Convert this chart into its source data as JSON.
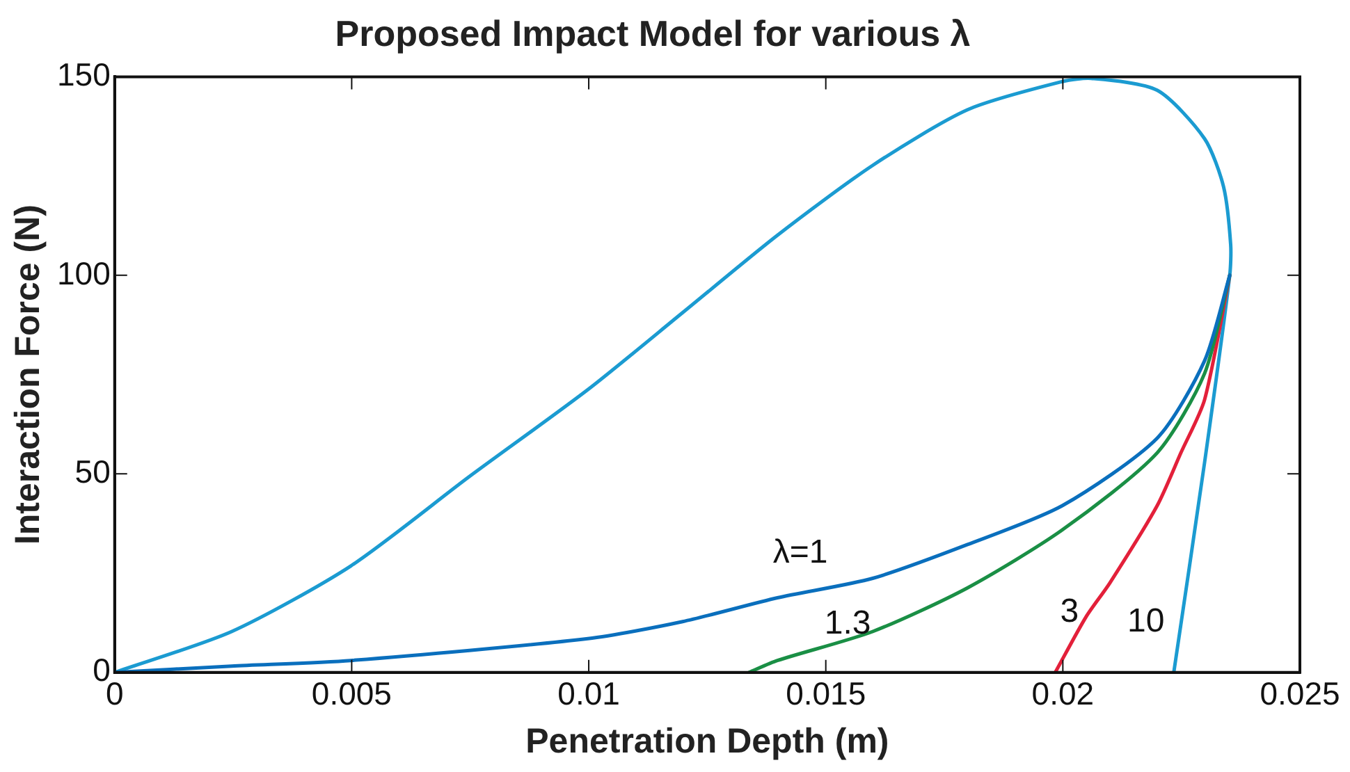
{
  "chart_data": {
    "type": "line",
    "title": "Proposed Impact Model for various λ",
    "xlabel": "Penetration Depth (m)",
    "ylabel": "Interaction Force (N)",
    "xlim": [
      0,
      0.025
    ],
    "xticks": [
      0,
      0.005,
      0.01,
      0.015,
      0.02,
      0.025
    ],
    "ylim": [
      0,
      150
    ],
    "yticks": [
      0,
      50,
      100,
      150
    ],
    "grid": false,
    "legend": false,
    "marker": "none",
    "line_style": "solid",
    "series": [
      {
        "name": "λ=1",
        "color": "#0a6fbd",
        "x": [
          0.02352,
          0.02299,
          0.02199,
          0.01999,
          0.01799,
          0.01599,
          0.01398,
          0.01198,
          0.00998,
          0.00498,
          0.00247,
          0
        ],
        "values": [
          100,
          78.5,
          59,
          42,
          32.2,
          23.7,
          18.8,
          12.8,
          8.5,
          3,
          1.6,
          0
        ]
      },
      {
        "name": "1.3",
        "color": "#1a8f45",
        "x": [
          0.02352,
          0.02299,
          0.02199,
          0.01999,
          0.01799,
          0.01599,
          0.01398,
          0.01338
        ],
        "values": [
          100,
          75.3,
          55.3,
          35.9,
          21.3,
          10.3,
          3,
          0
        ]
      },
      {
        "name": "3",
        "color": "#e3203a",
        "x": [
          0.02352,
          0.02299,
          0.02249,
          0.02199,
          0.02099,
          0.02049,
          0.01984
        ],
        "values": [
          100,
          68.7,
          55.3,
          42,
          22.5,
          14,
          0
        ]
      },
      {
        "name": "10",
        "color": "#1b9bd1",
        "x": [
          0,
          0.00247,
          0.00498,
          0.00748,
          0.00998,
          0.01198,
          0.01398,
          0.01599,
          0.01799,
          0.01999,
          0.0206,
          0.02199,
          0.02299,
          0.02339,
          0.02354,
          0.02352,
          0.02299,
          0.02234
        ],
        "values": [
          0,
          10.3,
          26.8,
          49.3,
          71.2,
          90.6,
          110.1,
          127.7,
          141.7,
          148.8,
          149.6,
          146.6,
          134.4,
          122.3,
          107.7,
          100,
          52.9,
          0
        ]
      }
    ]
  }
}
